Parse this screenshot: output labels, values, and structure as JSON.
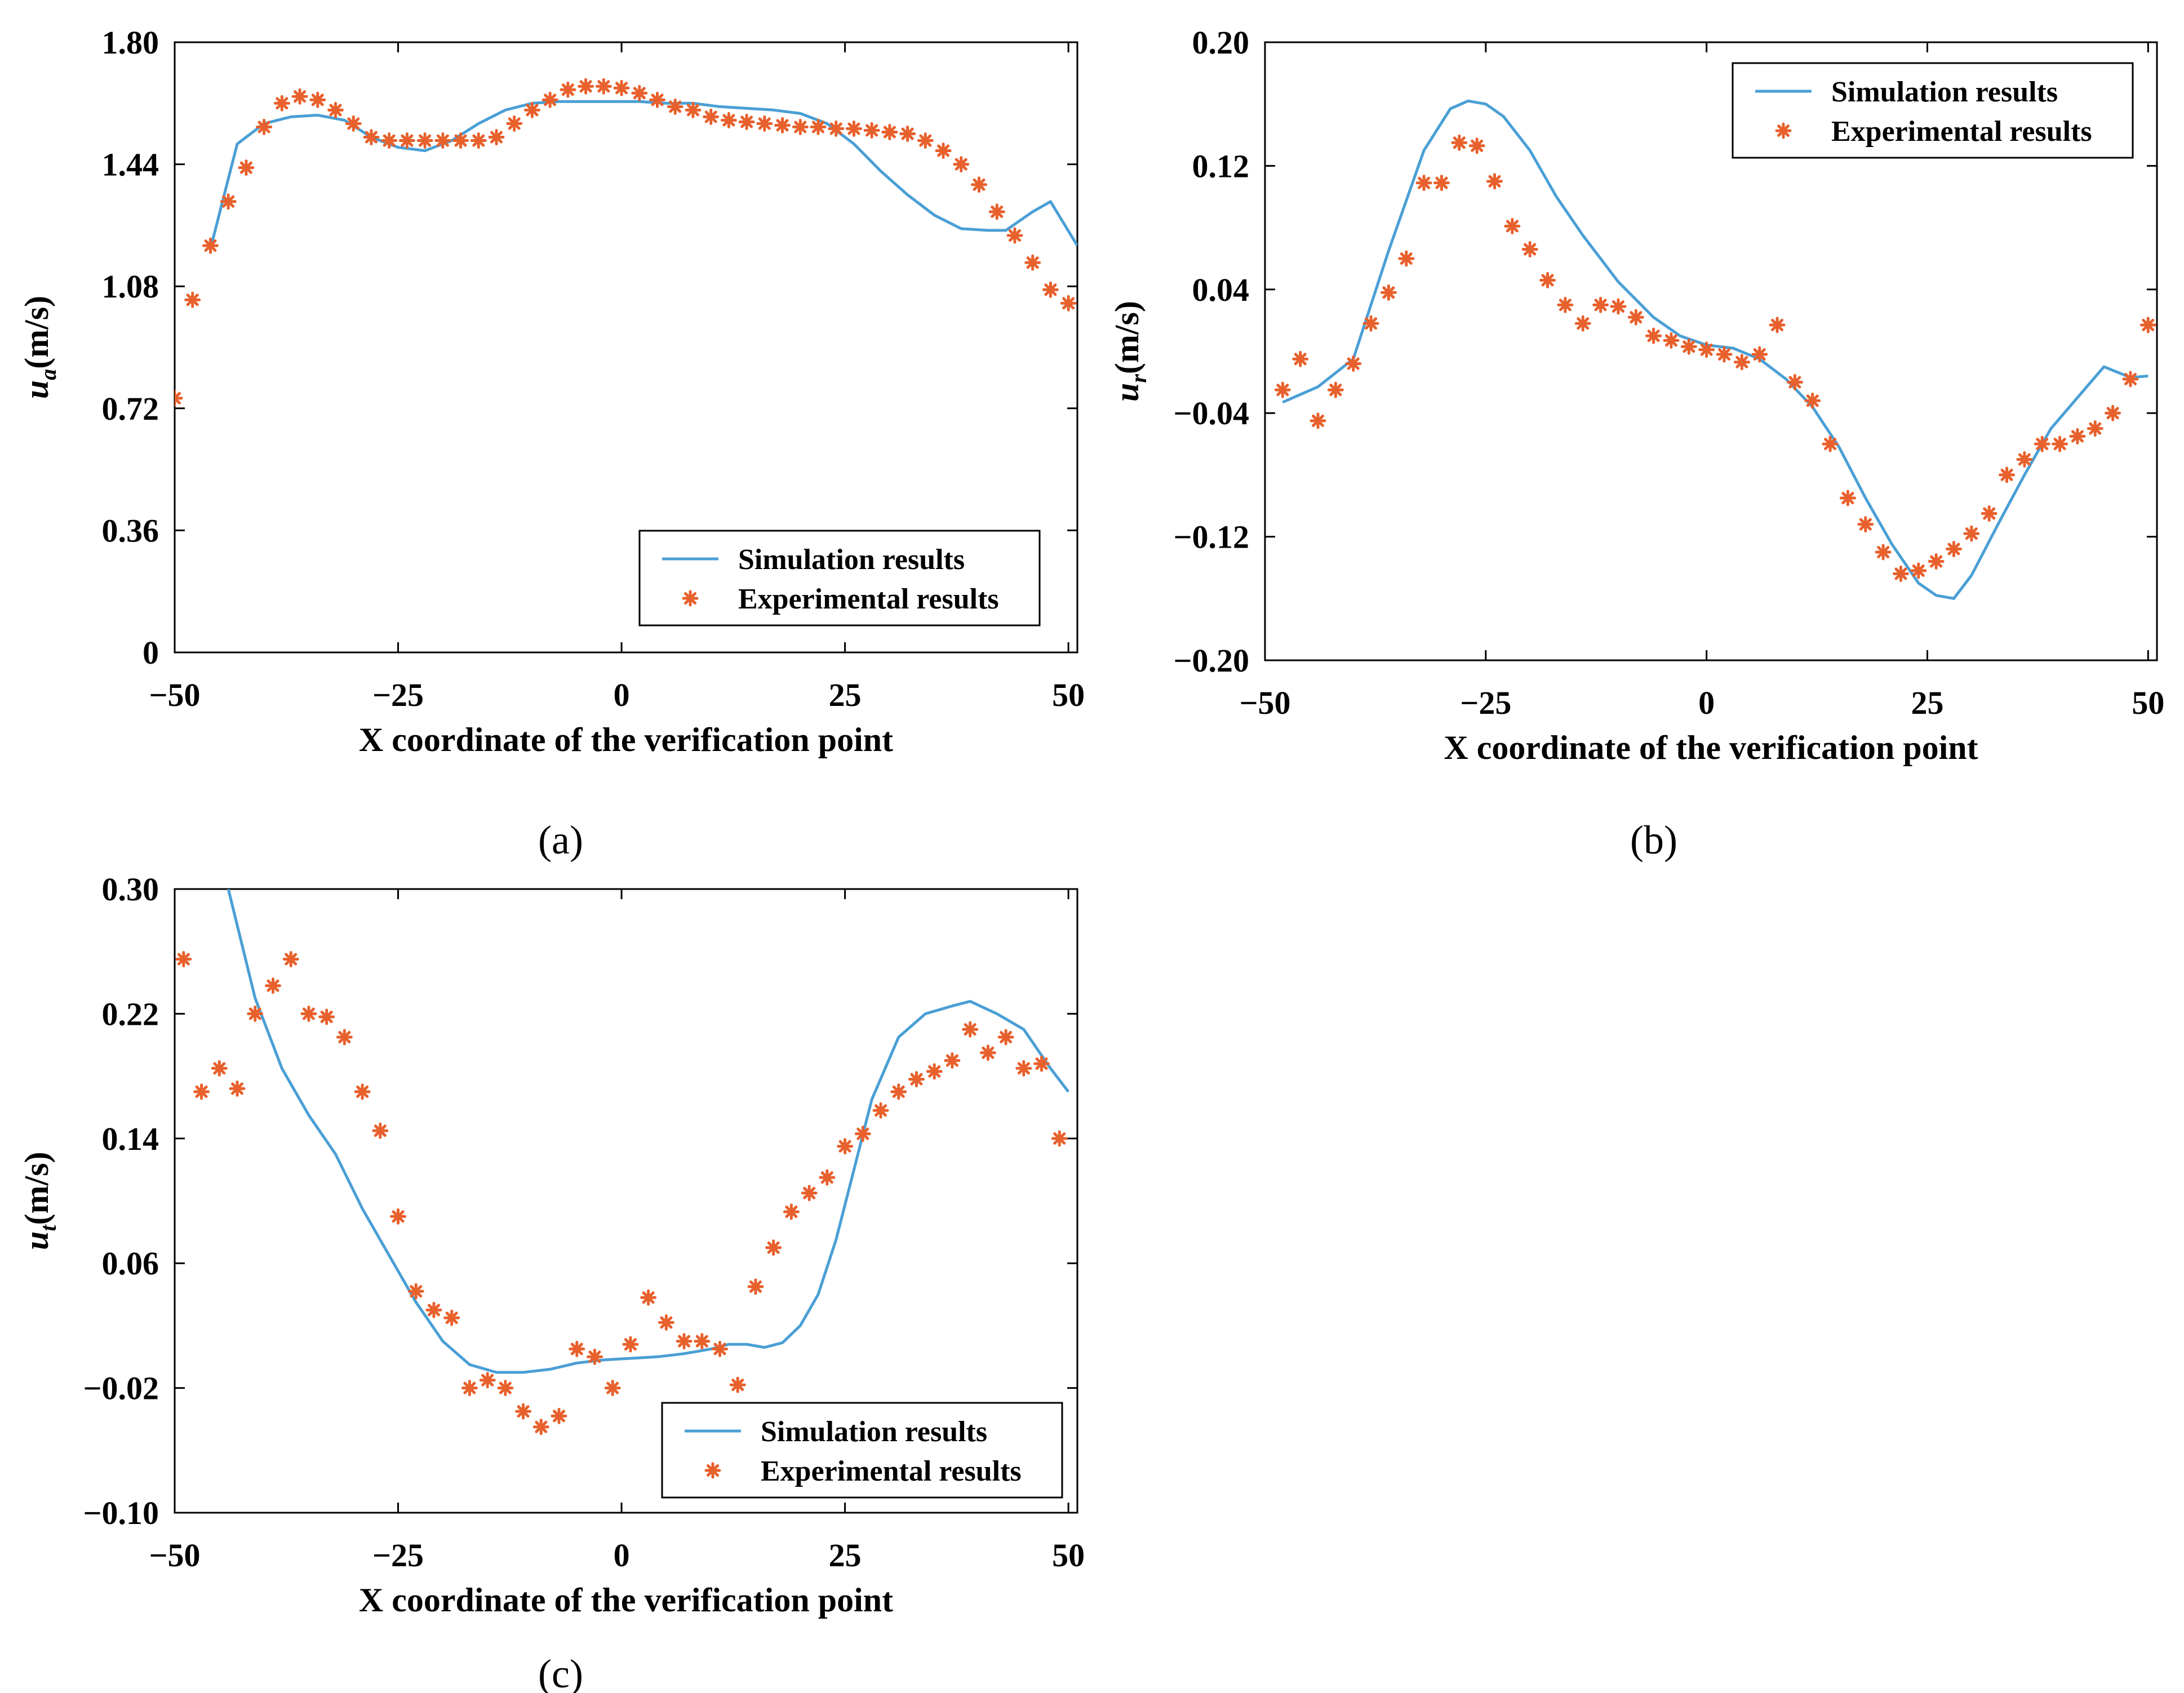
{
  "colors": {
    "simulation": "#4a9fd5",
    "experimental": "#e8602c",
    "axis": "#000000",
    "background": "#ffffff"
  },
  "icons": {
    "experimental_marker": "asterisk-marker-icon"
  },
  "chart_data": [
    {
      "id": "a",
      "panel_label": "(a)",
      "type": "line",
      "title": "",
      "xlabel": "X coordinate of the verification point",
      "ylabel_main": "u",
      "ylabel_sub": "a",
      "ylabel_unit": "(m/s)",
      "xlim": [
        -50,
        51
      ],
      "ylim": [
        0,
        1.8
      ],
      "xticks": [
        -50,
        -25,
        0,
        25,
        50
      ],
      "xtick_labels": [
        "−50",
        "−25",
        "0",
        "25",
        "50"
      ],
      "yticks": [
        0,
        0.36,
        0.72,
        1.08,
        1.44,
        1.8
      ],
      "ytick_labels": [
        "0",
        "0.36",
        "0.72",
        "1.08",
        "1.44",
        "1.80"
      ],
      "legend_position": "bottom-right",
      "series": [
        {
          "name": "Simulation results",
          "style": "line",
          "x": [
            -46,
            -43,
            -40,
            -37,
            -34,
            -31,
            -28,
            -25,
            -22,
            -19,
            -16,
            -13,
            -10,
            -7,
            -4,
            -1,
            2,
            5,
            8,
            11,
            14,
            17,
            20,
            23,
            26,
            29,
            32,
            35,
            38,
            41,
            43,
            46,
            48,
            51
          ],
          "y": [
            1.19,
            1.5,
            1.56,
            1.58,
            1.585,
            1.57,
            1.52,
            1.49,
            1.48,
            1.51,
            1.56,
            1.6,
            1.62,
            1.625,
            1.625,
            1.625,
            1.625,
            1.62,
            1.62,
            1.61,
            1.605,
            1.6,
            1.59,
            1.56,
            1.5,
            1.42,
            1.35,
            1.29,
            1.25,
            1.245,
            1.245,
            1.3,
            1.33,
            1.2
          ]
        },
        {
          "name": "Experimental results",
          "style": "marker",
          "x": [
            -50,
            -48,
            -46,
            -44,
            -42,
            -40,
            -38,
            -36,
            -34,
            -32,
            -30,
            -28,
            -26,
            -24,
            -22,
            -20,
            -18,
            -16,
            -14,
            -12,
            -10,
            -8,
            -6,
            -4,
            -2,
            0,
            2,
            4,
            6,
            8,
            10,
            12,
            14,
            16,
            18,
            20,
            22,
            24,
            26,
            28,
            30,
            32,
            34,
            36,
            38,
            40,
            42,
            44,
            46,
            48,
            50
          ],
          "y": [
            0.75,
            1.04,
            1.2,
            1.33,
            1.43,
            1.55,
            1.62,
            1.64,
            1.63,
            1.6,
            1.56,
            1.52,
            1.51,
            1.51,
            1.51,
            1.51,
            1.51,
            1.51,
            1.52,
            1.56,
            1.6,
            1.63,
            1.66,
            1.67,
            1.67,
            1.665,
            1.65,
            1.63,
            1.61,
            1.6,
            1.58,
            1.57,
            1.565,
            1.56,
            1.555,
            1.55,
            1.55,
            1.545,
            1.545,
            1.54,
            1.535,
            1.53,
            1.51,
            1.48,
            1.44,
            1.38,
            1.3,
            1.23,
            1.15,
            1.07,
            1.03
          ]
        }
      ]
    },
    {
      "id": "b",
      "panel_label": "(b)",
      "type": "line",
      "title": "",
      "xlabel": "X coordinate of the verification point",
      "ylabel_main": "u",
      "ylabel_sub": "r",
      "ylabel_unit": "(m/s)",
      "xlim": [
        -50,
        51
      ],
      "ylim": [
        -0.2,
        0.2
      ],
      "xticks": [
        -50,
        -25,
        0,
        25,
        50
      ],
      "xtick_labels": [
        "−50",
        "−25",
        "0",
        "25",
        "50"
      ],
      "yticks": [
        -0.2,
        -0.12,
        -0.04,
        0.04,
        0.12,
        0.2
      ],
      "ytick_labels": [
        "−0.20",
        "−0.12",
        "−0.04",
        "0.04",
        "0.12",
        "0.20"
      ],
      "legend_position": "top-right",
      "series": [
        {
          "name": "Simulation results",
          "style": "line",
          "x": [
            -48,
            -44,
            -40,
            -36,
            -32,
            -29,
            -27,
            -25,
            -23,
            -20,
            -17,
            -14,
            -10,
            -6,
            -3,
            0,
            3,
            6,
            9,
            12,
            15,
            18,
            21,
            24,
            26,
            28,
            30,
            33,
            36,
            39,
            42,
            45,
            48,
            50
          ],
          "y": [
            -0.033,
            -0.023,
            -0.005,
            0.065,
            0.13,
            0.157,
            0.162,
            0.16,
            0.152,
            0.13,
            0.1,
            0.075,
            0.045,
            0.022,
            0.01,
            0.004,
            0.002,
            -0.005,
            -0.018,
            -0.036,
            -0.062,
            -0.095,
            -0.125,
            -0.15,
            -0.158,
            -0.16,
            -0.145,
            -0.112,
            -0.08,
            -0.05,
            -0.03,
            -0.01,
            -0.017,
            -0.016
          ]
        },
        {
          "name": "Experimental results",
          "style": "marker",
          "x": [
            -48,
            -46,
            -44,
            -42,
            -40,
            -38,
            -36,
            -34,
            -32,
            -30,
            -28,
            -26,
            -24,
            -22,
            -20,
            -18,
            -16,
            -14,
            -12,
            -10,
            -8,
            -6,
            -4,
            -2,
            0,
            2,
            4,
            6,
            8,
            10,
            12,
            14,
            16,
            18,
            20,
            22,
            24,
            26,
            28,
            30,
            32,
            34,
            36,
            38,
            40,
            42,
            44,
            46,
            48,
            50
          ],
          "y": [
            -0.025,
            -0.005,
            -0.045,
            -0.025,
            -0.008,
            0.018,
            0.038,
            0.06,
            0.109,
            0.109,
            0.135,
            0.133,
            0.11,
            0.081,
            0.066,
            0.046,
            0.03,
            0.018,
            0.03,
            0.029,
            0.022,
            0.01,
            0.007,
            0.003,
            0.001,
            -0.002,
            -0.007,
            -0.002,
            0.017,
            -0.02,
            -0.032,
            -0.06,
            -0.095,
            -0.112,
            -0.13,
            -0.144,
            -0.142,
            -0.136,
            -0.128,
            -0.118,
            -0.105,
            -0.08,
            -0.07,
            -0.06,
            -0.06,
            -0.055,
            -0.05,
            -0.04,
            -0.018,
            0.017
          ]
        }
      ]
    },
    {
      "id": "c",
      "panel_label": "(c)",
      "type": "line",
      "title": "",
      "xlabel": "X coordinate of the verification point",
      "ylabel_main": "u",
      "ylabel_sub": "t",
      "ylabel_unit": "(m/s)",
      "xlim": [
        -50,
        51
      ],
      "ylim": [
        -0.1,
        0.3
      ],
      "xticks": [
        -50,
        -25,
        0,
        25,
        50
      ],
      "xtick_labels": [
        "−50",
        "−25",
        "0",
        "25",
        "50"
      ],
      "yticks": [
        -0.1,
        -0.02,
        0.06,
        0.14,
        0.22,
        0.3
      ],
      "ytick_labels": [
        "−0.10",
        "−0.02",
        "0.06",
        "0.14",
        "0.22",
        "0.30"
      ],
      "legend_position": "bottom-right",
      "series": [
        {
          "name": "Simulation results",
          "style": "line",
          "x": [
            -44,
            -41,
            -38,
            -35,
            -32,
            -29,
            -26,
            -23,
            -20,
            -17,
            -14,
            -11,
            -8,
            -5,
            -2,
            1,
            4,
            7,
            10,
            12,
            14,
            16,
            18,
            20,
            22,
            24,
            26,
            28,
            31,
            34,
            37,
            39,
            42,
            45,
            48,
            50
          ],
          "y": [
            0.3,
            0.23,
            0.185,
            0.155,
            0.13,
            0.095,
            0.065,
            0.035,
            0.01,
            -0.005,
            -0.01,
            -0.01,
            -0.008,
            -0.004,
            -0.002,
            -0.001,
            0,
            0.002,
            0.005,
            0.008,
            0.008,
            0.006,
            0.009,
            0.02,
            0.04,
            0.075,
            0.12,
            0.165,
            0.205,
            0.22,
            0.225,
            0.228,
            0.22,
            0.21,
            0.185,
            0.17
          ]
        },
        {
          "name": "Experimental results",
          "style": "marker",
          "x": [
            -49,
            -47,
            -45,
            -43,
            -41,
            -39,
            -37,
            -35,
            -33,
            -31,
            -29,
            -27,
            -25,
            -23,
            -21,
            -19,
            -17,
            -15,
            -13,
            -11,
            -9,
            -7,
            -5,
            -3,
            -1,
            1,
            3,
            5,
            7,
            9,
            11,
            13,
            15,
            17,
            19,
            21,
            23,
            25,
            27,
            29,
            31,
            33,
            35,
            37,
            39,
            41,
            43,
            45,
            47,
            49
          ],
          "y": [
            0.255,
            0.17,
            0.185,
            0.172,
            0.22,
            0.238,
            0.255,
            0.22,
            0.218,
            0.205,
            0.17,
            0.145,
            0.09,
            0.042,
            0.03,
            0.025,
            -0.02,
            -0.015,
            -0.02,
            -0.035,
            -0.045,
            -0.038,
            0.005,
            0,
            -0.02,
            0.008,
            0.038,
            0.022,
            0.01,
            0.01,
            0.005,
            -0.018,
            0.045,
            0.07,
            0.093,
            0.105,
            0.115,
            0.135,
            0.143,
            0.158,
            0.17,
            0.178,
            0.183,
            0.19,
            0.21,
            0.195,
            0.205,
            0.185,
            0.188,
            0.14
          ]
        }
      ]
    }
  ]
}
